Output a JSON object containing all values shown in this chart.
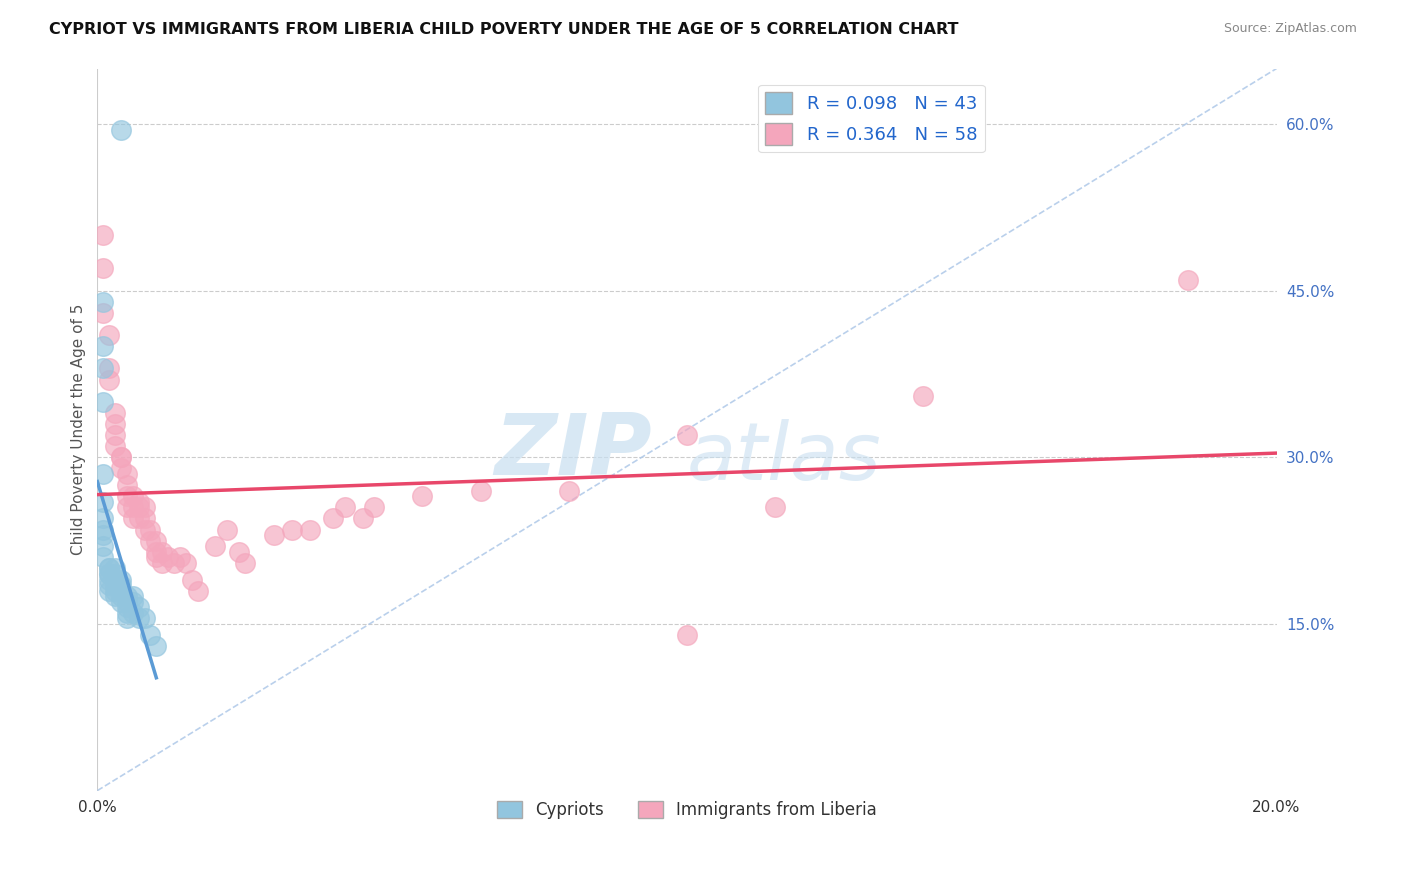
{
  "title": "CYPRIOT VS IMMIGRANTS FROM LIBERIA CHILD POVERTY UNDER THE AGE OF 5 CORRELATION CHART",
  "source": "Source: ZipAtlas.com",
  "ylabel": "Child Poverty Under the Age of 5",
  "x_min": 0.0,
  "x_max": 0.2,
  "y_min": 0.0,
  "y_max": 0.65,
  "x_ticks": [
    0.0,
    0.04,
    0.08,
    0.12,
    0.16,
    0.2
  ],
  "x_tick_labels": [
    "0.0%",
    "",
    "",
    "",
    "",
    "20.0%"
  ],
  "y_tick_labels_right": [
    "60.0%",
    "45.0%",
    "30.0%",
    "15.0%"
  ],
  "y_tick_vals_right": [
    0.6,
    0.45,
    0.3,
    0.15
  ],
  "watermark": "ZIPatlas",
  "legend_r1": "R = 0.098",
  "legend_n1": "N = 43",
  "legend_r2": "R = 0.364",
  "legend_n2": "N = 58",
  "color_cypriot": "#92c5de",
  "color_liberia": "#f4a6bc",
  "trend_color_cypriot": "#5b9bd5",
  "trend_color_liberia": "#e8476a",
  "diag_color": "#aec8e8",
  "cypriot_x": [
    0.004,
    0.001,
    0.001,
    0.001,
    0.001,
    0.001,
    0.001,
    0.001,
    0.001,
    0.001,
    0.001,
    0.001,
    0.002,
    0.002,
    0.002,
    0.002,
    0.002,
    0.002,
    0.002,
    0.003,
    0.003,
    0.003,
    0.003,
    0.003,
    0.003,
    0.004,
    0.004,
    0.004,
    0.004,
    0.004,
    0.005,
    0.005,
    0.005,
    0.005,
    0.005,
    0.006,
    0.006,
    0.006,
    0.007,
    0.007,
    0.008,
    0.009,
    0.01
  ],
  "cypriot_y": [
    0.595,
    0.44,
    0.4,
    0.38,
    0.35,
    0.285,
    0.26,
    0.245,
    0.235,
    0.23,
    0.22,
    0.21,
    0.2,
    0.2,
    0.195,
    0.195,
    0.19,
    0.185,
    0.18,
    0.2,
    0.195,
    0.19,
    0.185,
    0.18,
    0.175,
    0.19,
    0.185,
    0.18,
    0.175,
    0.17,
    0.175,
    0.17,
    0.165,
    0.16,
    0.155,
    0.175,
    0.17,
    0.16,
    0.165,
    0.155,
    0.155,
    0.14,
    0.13
  ],
  "liberia_x": [
    0.001,
    0.001,
    0.001,
    0.002,
    0.002,
    0.002,
    0.003,
    0.003,
    0.003,
    0.003,
    0.004,
    0.004,
    0.004,
    0.005,
    0.005,
    0.005,
    0.005,
    0.006,
    0.006,
    0.006,
    0.007,
    0.007,
    0.007,
    0.008,
    0.008,
    0.008,
    0.009,
    0.009,
    0.01,
    0.01,
    0.01,
    0.011,
    0.011,
    0.012,
    0.013,
    0.014,
    0.015,
    0.016,
    0.017,
    0.02,
    0.022,
    0.024,
    0.025,
    0.03,
    0.033,
    0.036,
    0.04,
    0.042,
    0.045,
    0.047,
    0.055,
    0.065,
    0.08,
    0.1,
    0.1,
    0.115,
    0.14,
    0.185
  ],
  "liberia_y": [
    0.5,
    0.47,
    0.43,
    0.41,
    0.38,
    0.37,
    0.34,
    0.33,
    0.32,
    0.31,
    0.3,
    0.3,
    0.29,
    0.285,
    0.275,
    0.265,
    0.255,
    0.265,
    0.255,
    0.245,
    0.26,
    0.255,
    0.245,
    0.255,
    0.245,
    0.235,
    0.235,
    0.225,
    0.225,
    0.215,
    0.21,
    0.215,
    0.205,
    0.21,
    0.205,
    0.21,
    0.205,
    0.19,
    0.18,
    0.22,
    0.235,
    0.215,
    0.205,
    0.23,
    0.235,
    0.235,
    0.245,
    0.255,
    0.245,
    0.255,
    0.265,
    0.27,
    0.27,
    0.32,
    0.14,
    0.255,
    0.355,
    0.46
  ]
}
